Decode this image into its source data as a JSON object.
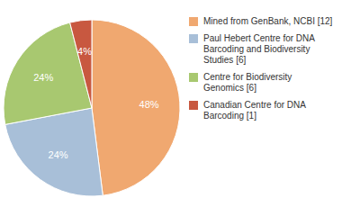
{
  "chart_data": {
    "type": "pie",
    "categories": [
      "Mined from GenBank, NCBI [12]",
      "Paul Hebert Centre for DNA\nBarcoding and Biodiversity\nStudies [6]",
      "Centre for Biodiversity\nGenomics [6]",
      "Canadian Centre for DNA\nBarcoding [1]"
    ],
    "values": [
      48,
      24,
      24,
      4
    ],
    "value_labels": [
      "48%",
      "24%",
      "24%",
      "4%"
    ],
    "colors": [
      "#f0a870",
      "#a8bfd8",
      "#a8c870",
      "#c85840"
    ],
    "data_labels": true,
    "legend": "right"
  }
}
